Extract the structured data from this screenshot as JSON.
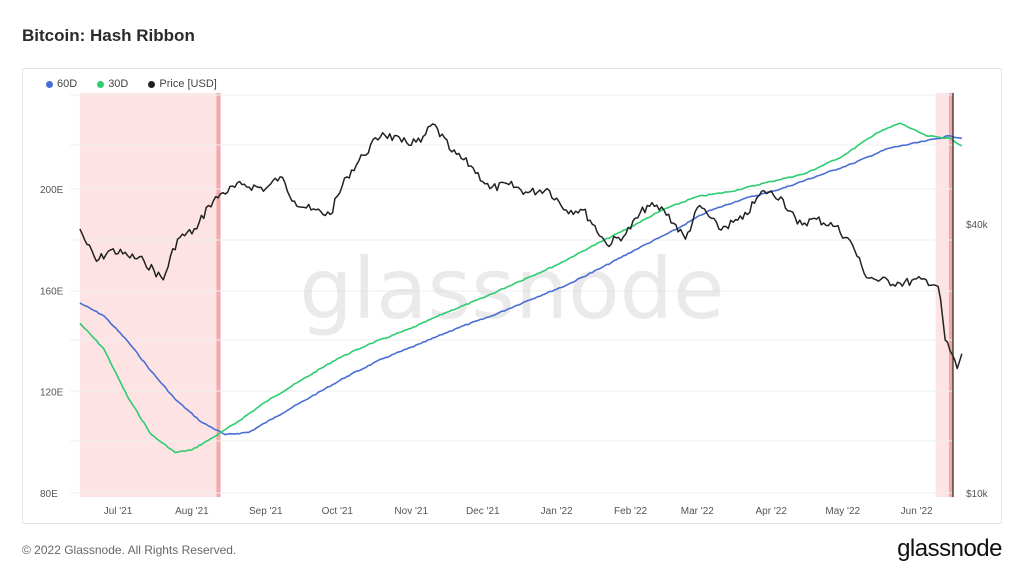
{
  "header": {
    "title": "Bitcoin: Hash Ribbon"
  },
  "footer": {
    "copyright": "© 2022 Glassnode. All Rights Reserved.",
    "logo": "glassnode"
  },
  "watermark": "glassnode",
  "chart_data": {
    "type": "line",
    "x_ticks": [
      "Jul '21",
      "Aug '21",
      "Sep '21",
      "Oct '21",
      "Nov '21",
      "Dec '21",
      "Jan '22",
      "Feb '22",
      "Mar '22",
      "Apr '22",
      "May '22",
      "Jun '22"
    ],
    "y_left_ticks": [
      "80E",
      "120E",
      "160E",
      "200E"
    ],
    "y_right_ticks": [
      "$10k",
      "$40k"
    ],
    "legend_position": "top-left",
    "grid": true,
    "y_left_range": [
      80,
      240
    ],
    "series": [
      {
        "name": "60D",
        "color": "#4a6fd4",
        "axis": "left",
        "points": [
          [
            "2021-06-15",
            155
          ],
          [
            "2021-06-25",
            150
          ],
          [
            "2021-07-05",
            140
          ],
          [
            "2021-07-15",
            128
          ],
          [
            "2021-07-25",
            117
          ],
          [
            "2021-08-05",
            108
          ],
          [
            "2021-08-15",
            103
          ],
          [
            "2021-08-25",
            104
          ],
          [
            "2021-09-05",
            110
          ],
          [
            "2021-09-20",
            118
          ],
          [
            "2021-10-05",
            126
          ],
          [
            "2021-10-20",
            133
          ],
          [
            "2021-11-05",
            139
          ],
          [
            "2021-11-20",
            145
          ],
          [
            "2021-12-05",
            150
          ],
          [
            "2021-12-20",
            156
          ],
          [
            "2022-01-05",
            162
          ],
          [
            "2022-01-20",
            169
          ],
          [
            "2022-02-05",
            177
          ],
          [
            "2022-02-20",
            184
          ],
          [
            "2022-03-05",
            191
          ],
          [
            "2022-03-20",
            196
          ],
          [
            "2022-04-05",
            200
          ],
          [
            "2022-04-20",
            205
          ],
          [
            "2022-05-05",
            210
          ],
          [
            "2022-05-20",
            216
          ],
          [
            "2022-06-05",
            219
          ],
          [
            "2022-06-15",
            221
          ],
          [
            "2022-06-20",
            220
          ]
        ]
      },
      {
        "name": "30D",
        "color": "#2ecc71",
        "axis": "left",
        "points": [
          [
            "2021-06-15",
            147
          ],
          [
            "2021-06-25",
            137
          ],
          [
            "2021-07-05",
            118
          ],
          [
            "2021-07-15",
            103
          ],
          [
            "2021-07-25",
            96
          ],
          [
            "2021-08-01",
            97
          ],
          [
            "2021-08-10",
            102
          ],
          [
            "2021-08-20",
            108
          ],
          [
            "2021-09-01",
            116
          ],
          [
            "2021-09-15",
            124
          ],
          [
            "2021-10-01",
            133
          ],
          [
            "2021-10-15",
            139
          ],
          [
            "2021-11-01",
            145
          ],
          [
            "2021-11-15",
            151
          ],
          [
            "2021-12-01",
            157
          ],
          [
            "2021-12-15",
            163
          ],
          [
            "2022-01-01",
            170
          ],
          [
            "2022-01-15",
            177
          ],
          [
            "2022-02-01",
            185
          ],
          [
            "2022-02-15",
            192
          ],
          [
            "2022-03-01",
            197
          ],
          [
            "2022-03-15",
            199
          ],
          [
            "2022-04-01",
            203
          ],
          [
            "2022-04-15",
            206
          ],
          [
            "2022-05-01",
            213
          ],
          [
            "2022-05-15",
            222
          ],
          [
            "2022-05-25",
            226
          ],
          [
            "2022-06-05",
            221
          ],
          [
            "2022-06-15",
            220
          ],
          [
            "2022-06-20",
            217
          ]
        ]
      },
      {
        "name": "Price [USD]",
        "color": "#222222",
        "axis": "right",
        "points": [
          [
            "2021-06-15",
            39000
          ],
          [
            "2021-06-18",
            36000
          ],
          [
            "2021-06-22",
            33000
          ],
          [
            "2021-06-28",
            35000
          ],
          [
            "2021-07-05",
            34000
          ],
          [
            "2021-07-12",
            33000
          ],
          [
            "2021-07-20",
            30000
          ],
          [
            "2021-07-26",
            37000
          ],
          [
            "2021-08-03",
            39000
          ],
          [
            "2021-08-08",
            44000
          ],
          [
            "2021-08-14",
            47000
          ],
          [
            "2021-08-22",
            49000
          ],
          [
            "2021-09-01",
            48000
          ],
          [
            "2021-09-07",
            51000
          ],
          [
            "2021-09-13",
            45000
          ],
          [
            "2021-09-20",
            43000
          ],
          [
            "2021-09-28",
            42000
          ],
          [
            "2021-10-05",
            51000
          ],
          [
            "2021-10-12",
            57000
          ],
          [
            "2021-10-20",
            64000
          ],
          [
            "2021-10-28",
            61000
          ],
          [
            "2021-11-05",
            61000
          ],
          [
            "2021-11-10",
            67000
          ],
          [
            "2021-11-18",
            58000
          ],
          [
            "2021-11-26",
            54000
          ],
          [
            "2021-12-04",
            48000
          ],
          [
            "2021-12-12",
            49000
          ],
          [
            "2021-12-20",
            47000
          ],
          [
            "2021-12-28",
            48000
          ],
          [
            "2022-01-05",
            43000
          ],
          [
            "2022-01-12",
            43000
          ],
          [
            "2022-01-22",
            36000
          ],
          [
            "2022-01-30",
            38000
          ],
          [
            "2022-02-08",
            44000
          ],
          [
            "2022-02-15",
            43000
          ],
          [
            "2022-02-24",
            37000
          ],
          [
            "2022-03-02",
            44000
          ],
          [
            "2022-03-10",
            39000
          ],
          [
            "2022-03-20",
            41000
          ],
          [
            "2022-03-29",
            47500
          ],
          [
            "2022-04-05",
            46000
          ],
          [
            "2022-04-12",
            40000
          ],
          [
            "2022-04-20",
            41000
          ],
          [
            "2022-04-28",
            39500
          ],
          [
            "2022-05-05",
            36000
          ],
          [
            "2022-05-10",
            31000
          ],
          [
            "2022-05-15",
            30000
          ],
          [
            "2022-05-25",
            29500
          ],
          [
            "2022-06-05",
            30000
          ],
          [
            "2022-06-10",
            29000
          ],
          [
            "2022-06-13",
            22000
          ],
          [
            "2022-06-18",
            19000
          ],
          [
            "2022-06-20",
            20500
          ]
        ]
      }
    ],
    "shaded_regions": [
      {
        "start": "2021-06-15",
        "end": "2021-08-13",
        "color": "#fde3e3"
      },
      {
        "start": "2022-06-09",
        "end": "2022-06-20",
        "color": "#fde3e3"
      }
    ]
  }
}
